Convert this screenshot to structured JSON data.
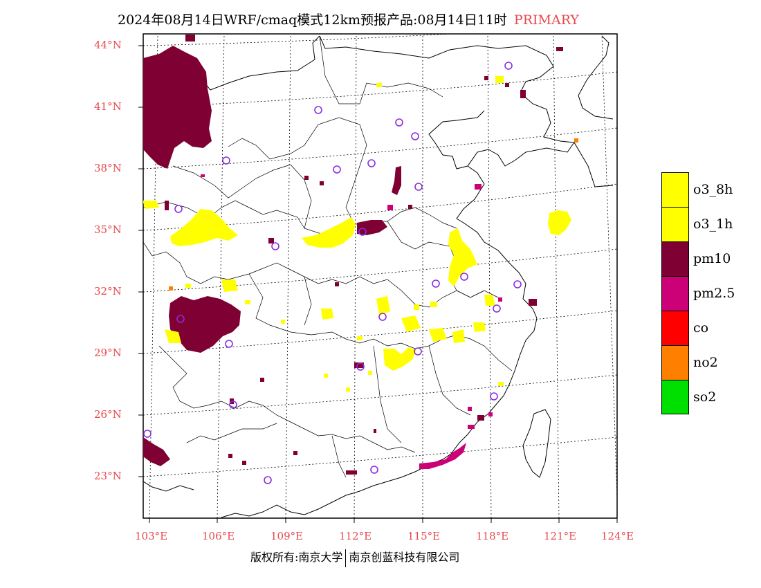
{
  "title": {
    "text": "2024年08月14日WRF/cmaq模式12km预报产品:08月14日11时",
    "tag": "PRIMARY"
  },
  "lat_labels": [
    "44°N",
    "41°N",
    "38°N",
    "35°N",
    "32°N",
    "29°N",
    "26°N",
    "23°N"
  ],
  "lon_labels": [
    "103°E",
    "106°E",
    "109°E",
    "112°E",
    "115°E",
    "118°E",
    "121°E",
    "124°E"
  ],
  "legend": [
    {
      "label": "o3_8h",
      "color": "#ffff00"
    },
    {
      "label": "o3_1h",
      "color": "#ffff00"
    },
    {
      "label": "pm10",
      "color": "#7f0033"
    },
    {
      "label": "pm2.5",
      "color": "#cc0077"
    },
    {
      "label": "co",
      "color": "#ff0000"
    },
    {
      "label": "no2",
      "color": "#ff7f00"
    },
    {
      "label": "so2",
      "color": "#00e000"
    }
  ],
  "footer": {
    "left": "版权所有:南京大学",
    "right": "南京创蓝科技有限公司"
  },
  "colors": {
    "label_red": "#e8474b",
    "marker_purple": "#8a2be2"
  }
}
